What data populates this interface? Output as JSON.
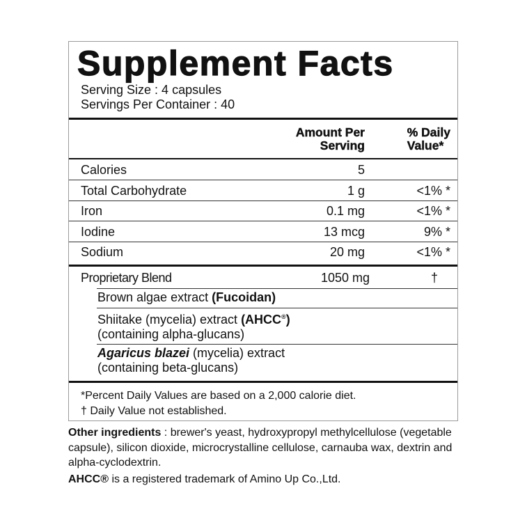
{
  "title": "Supplement Facts",
  "serving_size": "Serving Size : 4 capsules",
  "servings_per_container": "Servings Per Container : 40",
  "header": {
    "amount_line1": "Amount Per",
    "amount_line2": "Serving",
    "dv_line1": "% Daily",
    "dv_line2": "Value*"
  },
  "nutrients": [
    {
      "name": "Calories",
      "amount": "5",
      "dv": ""
    },
    {
      "name": "Total Carbohydrate",
      "amount": "1 g",
      "dv": "<1% *"
    },
    {
      "name": "Iron",
      "amount": "0.1 mg",
      "dv": "<1% *"
    },
    {
      "name": "Iodine",
      "amount": "13 mcg",
      "dv": "9% *"
    },
    {
      "name": "Sodium",
      "amount": "20 mg",
      "dv": "<1% *"
    }
  ],
  "blend": {
    "name": "Proprietary Blend",
    "amount": "1050 mg",
    "dv": "†"
  },
  "blend_items": [
    {
      "prefix": "Brown algae extract ",
      "bold": "(Fucoidan)"
    },
    {
      "prefix": "Shiitake (mycelia) extract ",
      "bold": "(AHCC",
      "sup": "®",
      "bold_end": ")",
      "line2": "(containing alpha-glucans)"
    },
    {
      "italic": "Agaricus blazei",
      "suffix": " (mycelia) extract",
      "line2": "(containing beta-glucans)"
    }
  ],
  "footnotes": [
    "*Percent Daily Values are based on a 2,000 calorie diet.",
    "† Daily Value not established."
  ],
  "other_ingredients": {
    "label": "Other ingredients",
    "text": " : brewer's yeast, hydroxypropyl methylcellulose (vegetable capsule), silicon dioxide, microcrystalline cellulose, carnauba wax, dextrin and alpha-cyclodextrin."
  },
  "trademark": {
    "brand": "AHCC®",
    "text": " is a registered trademark of Amino Up Co.,Ltd."
  }
}
